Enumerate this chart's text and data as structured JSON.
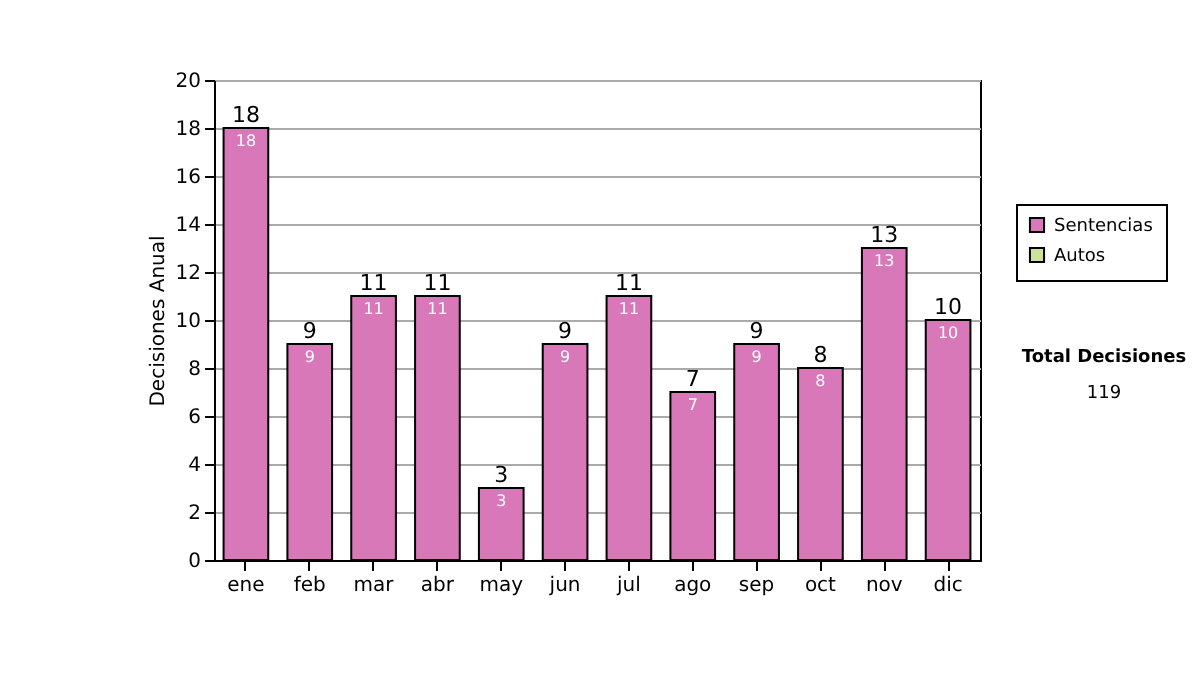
{
  "chart_data": {
    "type": "bar",
    "ylabel": "Decisiones Anual",
    "categories": [
      "ene",
      "feb",
      "mar",
      "abr",
      "may",
      "jun",
      "jul",
      "ago",
      "sep",
      "oct",
      "nov",
      "dic"
    ],
    "series": [
      {
        "name": "Sentencias",
        "color": "#d878b8",
        "values": [
          18,
          9,
          11,
          11,
          3,
          9,
          11,
          7,
          9,
          8,
          13,
          10
        ],
        "value_labels": [
          "18",
          "9",
          "11",
          "11",
          "3",
          "9",
          "11",
          "7",
          "9",
          "8",
          "13",
          "10"
        ]
      },
      {
        "name": "Autos",
        "color": "#cce199",
        "values": [
          null,
          null,
          null,
          null,
          null,
          null,
          null,
          null,
          null,
          null,
          null,
          null
        ]
      }
    ],
    "totals": [
      "18",
      "9",
      "11",
      "11",
      "3",
      "9",
      "11",
      "7",
      "9",
      "8",
      "13",
      "10"
    ],
    "ylim": [
      0,
      20
    ],
    "yticks": [
      0,
      2,
      4,
      6,
      8,
      10,
      12,
      14,
      16,
      18,
      20
    ],
    "grid": "y",
    "legend": "right",
    "annotations": [
      "Total Decisiones",
      "119"
    ]
  }
}
